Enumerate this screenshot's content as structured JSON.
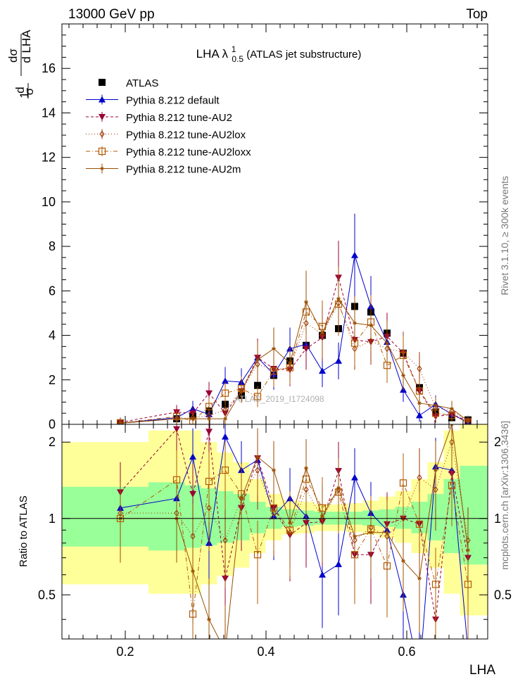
{
  "header": {
    "left": "13000 GeV pp",
    "right": "Top"
  },
  "side_labels": {
    "rivet": "Rivet 3.1.10, ≥ 300k events",
    "mcplots": "mcplots.cern.ch [arXiv:1306.3436]"
  },
  "chart_data": {
    "type": "scatter",
    "title": "LHA λ",
    "title_sup": "1",
    "title_sub": "0.5",
    "title_suffix": "(ATLAS jet substructure)",
    "watermark": "ATLAS_2019_I1724098",
    "xlabel": "LHA",
    "ylabel_main": "1/σ dσ/d LHA",
    "ylabel_ratio": "Ratio to ATLAS",
    "xlim": [
      0.11,
      0.715
    ],
    "ylim_main": [
      0,
      18
    ],
    "ylim_ratio": [
      0.335,
      2.35
    ],
    "xticks": [
      0.2,
      0.4,
      0.6
    ],
    "xtick_labels": [
      "0.2",
      "0.4",
      "0.6"
    ],
    "yticks_main": [
      0,
      2,
      4,
      6,
      8,
      10,
      12,
      14,
      16
    ],
    "ytick_labels_main": [
      "0",
      "2",
      "4",
      "6",
      "8",
      "10",
      "12",
      "14",
      "16"
    ],
    "yticks_ratio": [
      0.5,
      1,
      2
    ],
    "ytick_labels_ratio": [
      "0.5",
      "1",
      "2"
    ],
    "x": [
      0.193,
      0.273,
      0.296,
      0.319,
      0.342,
      0.365,
      0.388,
      0.411,
      0.434,
      0.457,
      0.48,
      0.503,
      0.526,
      0.549,
      0.572,
      0.595,
      0.618,
      0.641,
      0.664,
      0.687
    ],
    "series": [
      {
        "name": "ATLAS",
        "color": "#000000",
        "marker": "square-filled",
        "values": [
          0.07,
          0.25,
          0.38,
          0.6,
          0.9,
          1.3,
          1.75,
          2.2,
          2.85,
          3.55,
          4.0,
          4.3,
          5.3,
          5.05,
          4.1,
          3.2,
          1.65,
          0.55,
          0.3,
          0.2
        ]
      },
      {
        "name": "Pythia 8.212 default",
        "color": "#0000cc",
        "marker": "triangle-up",
        "line": "solid",
        "values": [
          0.05,
          0.3,
          0.7,
          0.45,
          1.95,
          1.9,
          3.0,
          2.25,
          3.4,
          3.6,
          2.4,
          2.85,
          7.6,
          5.3,
          3.7,
          1.55,
          0.4,
          0.9,
          0.45,
          0.1
        ],
        "ratio": [
          1.1,
          1.2,
          1.75,
          0.8,
          2.1,
          1.55,
          1.7,
          1.02,
          1.2,
          1.02,
          0.6,
          0.66,
          1.45,
          1.05,
          0.9,
          0.5,
          0.24,
          1.6,
          1.55,
          0.3
        ]
      },
      {
        "name": "Pythia 8.212 tune-AU2",
        "color": "#990033",
        "marker": "triangle-down",
        "line": "dashed",
        "values": [
          0.09,
          0.55,
          0.5,
          1.4,
          0.5,
          1.5,
          3.0,
          2.5,
          2.45,
          3.4,
          3.9,
          6.6,
          3.8,
          3.7,
          3.95,
          3.2,
          1.5,
          0.35,
          0.45,
          0.15
        ],
        "ratio": [
          1.27,
          2.25,
          1.25,
          2.2,
          0.58,
          1.1,
          1.73,
          1.1,
          0.86,
          0.96,
          0.97,
          1.54,
          0.72,
          0.72,
          0.95,
          1.0,
          0.95,
          0.4,
          1.5,
          0.7
        ]
      },
      {
        "name": "Pythia 8.212 tune-AU2lox",
        "color": "#993300",
        "marker": "diamond-open",
        "line": "dotted",
        "values": [
          0.05,
          0.25,
          0.3,
          0.4,
          0.65,
          1.5,
          2.7,
          2.45,
          2.55,
          4.55,
          4.05,
          5.45,
          3.4,
          3.75,
          3.4,
          3.25,
          2.5,
          0.75,
          0.6,
          0.15
        ],
        "ratio": [
          1.05,
          1.05,
          0.85,
          1.1,
          0.82,
          1.2,
          1.55,
          1.05,
          0.88,
          1.3,
          1.0,
          1.3,
          0.82,
          0.92,
          0.85,
          1.0,
          1.45,
          1.3,
          2.0,
          0.82
        ]
      },
      {
        "name": "Pythia 8.212 tune-AU2loxx",
        "color": "#b35900",
        "marker": "square-open",
        "line": "dashdot",
        "values": [
          0.06,
          0.35,
          0.15,
          0.8,
          1.4,
          1.6,
          1.25,
          2.4,
          2.55,
          5.05,
          4.4,
          5.4,
          3.65,
          4.6,
          2.65,
          3.1,
          1.5,
          0.5,
          0.4,
          0.1
        ],
        "ratio": [
          1.0,
          1.42,
          0.42,
          1.4,
          1.55,
          1.25,
          0.72,
          1.1,
          0.9,
          1.43,
          1.1,
          1.27,
          0.72,
          0.91,
          0.65,
          1.38,
          0.95,
          0.55,
          1.35,
          0.55
        ]
      },
      {
        "name": "Pythia 8.212 tune-AU2m",
        "color": "#994d00",
        "marker": "star-small",
        "line": "solid",
        "values": [
          0.05,
          0.25,
          0.25,
          0.25,
          0.25,
          1.5,
          2.9,
          3.4,
          2.75,
          5.5,
          4.1,
          5.65,
          4.55,
          4.45,
          3.65,
          2.2,
          0.95,
          0.85,
          0.7,
          0.15
        ],
        "ratio": [
          1.0,
          1.0,
          0.62,
          0.4,
          0.3,
          1.2,
          1.75,
          1.55,
          0.96,
          1.58,
          1.02,
          1.32,
          0.85,
          0.88,
          0.88,
          0.68,
          0.58,
          1.55,
          2.35,
          0.75
        ]
      }
    ],
    "ratio_band_inner": [
      0.75,
      0.72,
      0.74,
      0.76,
      0.78,
      0.8,
      0.86,
      0.9,
      0.92,
      0.93,
      0.94,
      0.94,
      0.94,
      0.93,
      0.92,
      0.9,
      0.86,
      0.8,
      0.7,
      0.62
    ],
    "ratio_band_outer": [
      0.5,
      0.45,
      0.45,
      0.5,
      0.55,
      0.6,
      0.7,
      0.8,
      0.85,
      0.86,
      0.88,
      0.88,
      0.87,
      0.85,
      0.82,
      0.78,
      0.7,
      0.6,
      0.45,
      0.35
    ],
    "grid": false,
    "legend_position": "top-left"
  }
}
